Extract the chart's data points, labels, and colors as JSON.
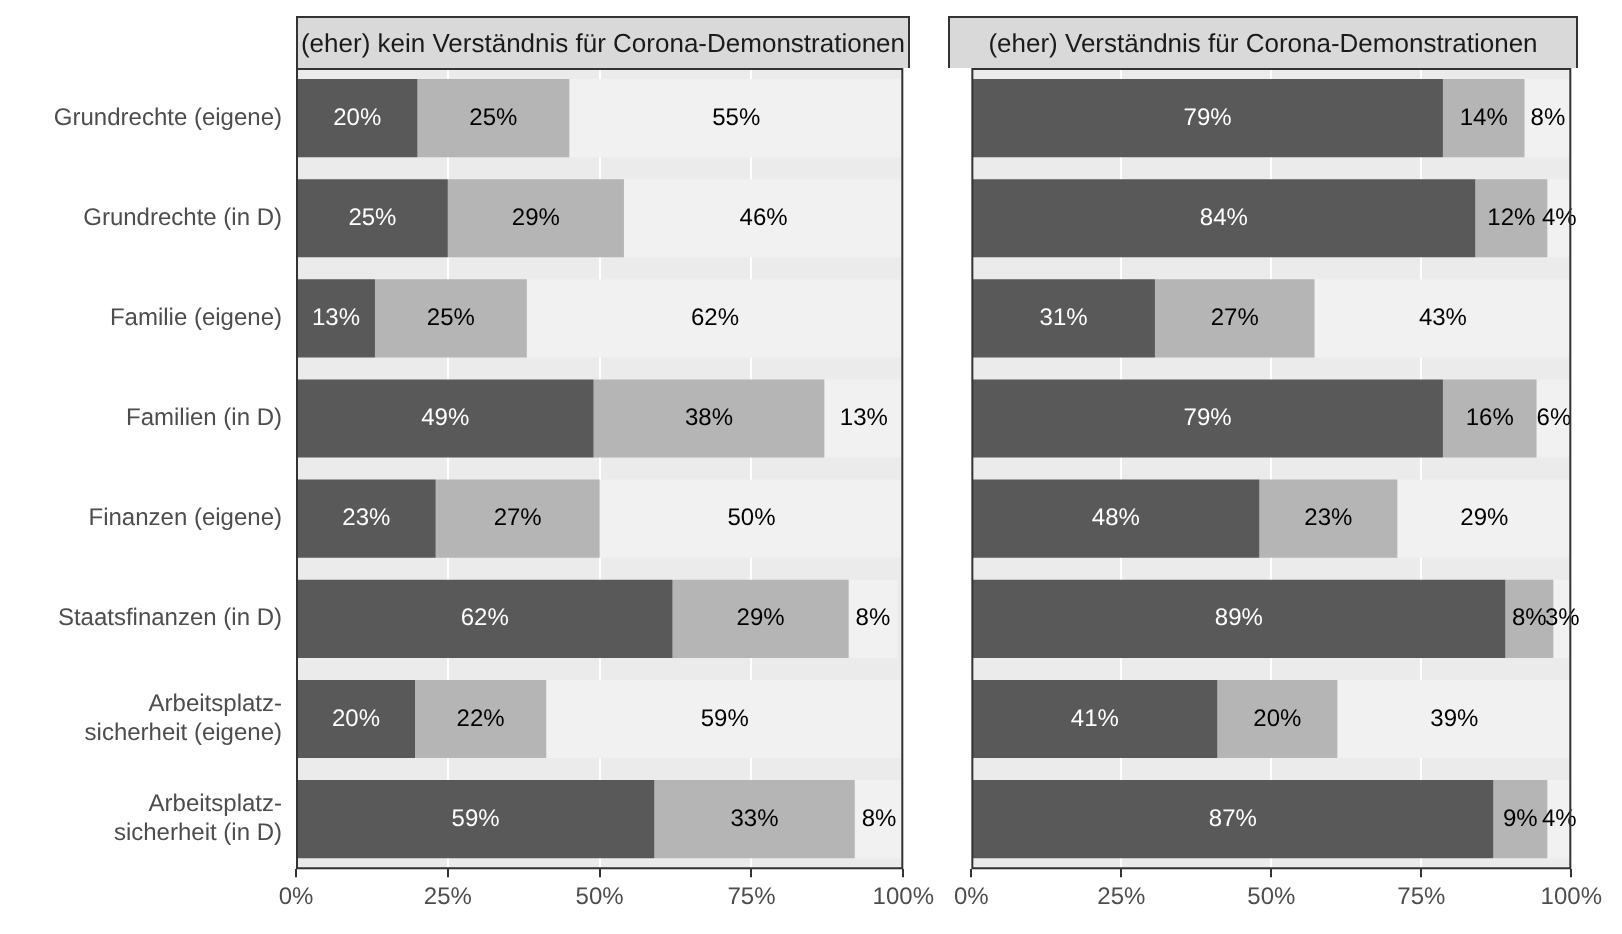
{
  "chart_data": [
    {
      "type": "bar",
      "orientation": "horizontal",
      "stacked": true,
      "title": "(eher) kein Verständnis für Corona-Demonstrationen",
      "categories": [
        "Grundrechte (eigene)",
        "Grundrechte (in D)",
        "Familie (eigene)",
        "Familien (in D)",
        "Finanzen (eigene)",
        "Staatsfinanzen (in D)",
        "Arbeitsplatz-\nsicherheit (eigene)",
        "Arbeitsplatz-\nsicherheit (in D)"
      ],
      "xlim": [
        0,
        100
      ],
      "xticks": [
        {
          "value": 0,
          "label": "0%"
        },
        {
          "value": 25,
          "label": "25%"
        },
        {
          "value": 50,
          "label": "50%"
        },
        {
          "value": 75,
          "label": "75%"
        },
        {
          "value": 100,
          "label": "100%"
        }
      ],
      "grid": "x",
      "series": [
        {
          "color": "#595959",
          "values": [
            20,
            25,
            13,
            49,
            23,
            62,
            19.6,
            59
          ],
          "value_labels": [
            "20%",
            "25%",
            "13%",
            "49%",
            "23%",
            "62%",
            "20%",
            "59%"
          ]
        },
        {
          "color": "#b5b5b5",
          "values": [
            25,
            29,
            25,
            38,
            27,
            29,
            21.6,
            33
          ],
          "value_labels": [
            "25%",
            "29%",
            "25%",
            "38%",
            "27%",
            "29%",
            "22%",
            "33%"
          ]
        },
        {
          "color": "#f0f1f0",
          "values": [
            55,
            46,
            62,
            13,
            50,
            8,
            58.8,
            8
          ],
          "value_labels": [
            "55%",
            "46%",
            "62%",
            "13%",
            "50%",
            "8%",
            "59%",
            "8%"
          ]
        }
      ]
    },
    {
      "type": "bar",
      "orientation": "horizontal",
      "stacked": true,
      "title": "(eher) Verständnis für Corona-Demonstrationen",
      "categories": [
        null,
        null,
        null,
        null,
        null,
        null,
        null,
        null
      ],
      "xlim": [
        0,
        100
      ],
      "xticks": [
        {
          "value": 0,
          "label": "0%"
        },
        {
          "value": 25,
          "label": "25%"
        },
        {
          "value": 50,
          "label": "50%"
        },
        {
          "value": 75,
          "label": "75%"
        },
        {
          "value": 100,
          "label": "100%"
        }
      ],
      "grid": "x",
      "tick_labels": "x",
      "series": [
        {
          "color": "#595959",
          "values": [
            78.6,
            84,
            30.6,
            78.6,
            48,
            89,
            41,
            87
          ],
          "value_labels": [
            "79%",
            "84%",
            "31%",
            "79%",
            "48%",
            "89%",
            "41%",
            "87%"
          ]
        },
        {
          "color": "#b5b5b5",
          "values": [
            13.6,
            12,
            26.6,
            15.6,
            23,
            8,
            20,
            9
          ],
          "value_labels": [
            "14%",
            "12%",
            "27%",
            "16%",
            "23%",
            "8%",
            "20%",
            "9%"
          ]
        },
        {
          "color": "#f0f1f0",
          "values": [
            7.8,
            4,
            42.8,
            5.8,
            29,
            3,
            39,
            4
          ],
          "value_labels": [
            "8%",
            "4%",
            "43%",
            "6%",
            "29%",
            "3%",
            "39%",
            "4%"
          ]
        }
      ]
    }
  ]
}
